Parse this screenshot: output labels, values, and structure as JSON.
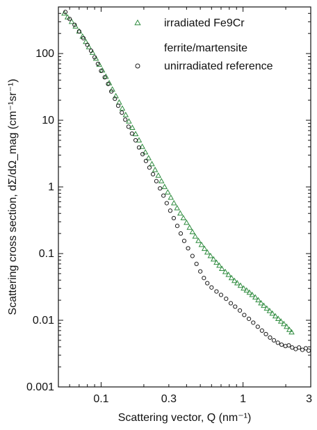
{
  "chart_data": {
    "type": "scatter",
    "title": "",
    "xlabel": "Scattering vector, Q  (nm⁻¹)",
    "ylabel": "Scattering cross section, dΣ/dΩ_mag  (cm⁻¹sr⁻¹)",
    "x_scale": "log",
    "y_scale": "log",
    "xlim": [
      0.05,
      3
    ],
    "ylim": [
      0.001,
      500
    ],
    "x_ticks": [
      0.1,
      0.3,
      1,
      3
    ],
    "x_tick_labels": [
      "0.1",
      "0.3",
      "1",
      "3"
    ],
    "y_ticks": [
      0.001,
      0.01,
      0.1,
      1,
      10,
      100
    ],
    "y_tick_labels": [
      "0.001",
      "0.01",
      "0.1",
      "1",
      "10",
      "100"
    ],
    "grid": false,
    "legend_position": "top-right",
    "legend_lines": [
      "irradiated Fe9Cr",
      "ferrite/martensite",
      "unirradiated reference"
    ],
    "series": [
      {
        "name": "irradiated Fe9Cr ferrite/martensite",
        "marker": "triangle",
        "color": "#2e8b3e",
        "points": [
          [
            0.055,
            400
          ],
          [
            0.058,
            350
          ],
          [
            0.062,
            300
          ],
          [
            0.066,
            255
          ],
          [
            0.07,
            215
          ],
          [
            0.074,
            180
          ],
          [
            0.078,
            150
          ],
          [
            0.082,
            125
          ],
          [
            0.087,
            103
          ],
          [
            0.092,
            84
          ],
          [
            0.097,
            68
          ],
          [
            0.102,
            56
          ],
          [
            0.108,
            45
          ],
          [
            0.114,
            36
          ],
          [
            0.12,
            29
          ],
          [
            0.127,
            23
          ],
          [
            0.134,
            18.5
          ],
          [
            0.141,
            15
          ],
          [
            0.149,
            12
          ],
          [
            0.157,
            9.6
          ],
          [
            0.166,
            7.7
          ],
          [
            0.175,
            6.2
          ],
          [
            0.185,
            5
          ],
          [
            0.195,
            4
          ],
          [
            0.205,
            3.3
          ],
          [
            0.216,
            2.7
          ],
          [
            0.228,
            2.2
          ],
          [
            0.24,
            1.8
          ],
          [
            0.253,
            1.48
          ],
          [
            0.266,
            1.22
          ],
          [
            0.28,
            1
          ],
          [
            0.295,
            0.83
          ],
          [
            0.31,
            0.69
          ],
          [
            0.326,
            0.57
          ],
          [
            0.343,
            0.48
          ],
          [
            0.361,
            0.4
          ],
          [
            0.38,
            0.34
          ],
          [
            0.4,
            0.29
          ],
          [
            0.42,
            0.245
          ],
          [
            0.44,
            0.21
          ],
          [
            0.46,
            0.18
          ],
          [
            0.485,
            0.155
          ],
          [
            0.51,
            0.135
          ],
          [
            0.535,
            0.118
          ],
          [
            0.56,
            0.104
          ],
          [
            0.59,
            0.092
          ],
          [
            0.62,
            0.082
          ],
          [
            0.65,
            0.073
          ],
          [
            0.68,
            0.066
          ],
          [
            0.71,
            0.059
          ],
          [
            0.75,
            0.053
          ],
          [
            0.79,
            0.048
          ],
          [
            0.83,
            0.043
          ],
          [
            0.87,
            0.039
          ],
          [
            0.91,
            0.036
          ],
          [
            0.96,
            0.033
          ],
          [
            1.01,
            0.03
          ],
          [
            1.06,
            0.028
          ],
          [
            1.11,
            0.026
          ],
          [
            1.16,
            0.024
          ],
          [
            1.22,
            0.022
          ],
          [
            1.28,
            0.02
          ],
          [
            1.34,
            0.018
          ],
          [
            1.4,
            0.0165
          ],
          [
            1.47,
            0.015
          ],
          [
            1.54,
            0.0138
          ],
          [
            1.61,
            0.0126
          ],
          [
            1.69,
            0.0115
          ],
          [
            1.77,
            0.0105
          ],
          [
            1.85,
            0.0096
          ],
          [
            1.94,
            0.0088
          ],
          [
            2.03,
            0.008
          ],
          [
            2.12,
            0.0072
          ],
          [
            2.2,
            0.0066
          ]
        ]
      },
      {
        "name": "unirradiated reference",
        "marker": "circle",
        "color": "#1a1a1a",
        "points": [
          [
            0.056,
            420
          ],
          [
            0.06,
            330
          ],
          [
            0.065,
            270
          ],
          [
            0.07,
            215
          ],
          [
            0.075,
            170
          ],
          [
            0.08,
            135
          ],
          [
            0.085,
            110
          ],
          [
            0.09,
            88
          ],
          [
            0.095,
            70
          ],
          [
            0.1,
            55
          ],
          [
            0.106,
            44
          ],
          [
            0.112,
            35
          ],
          [
            0.118,
            27
          ],
          [
            0.125,
            21
          ],
          [
            0.132,
            16.5
          ],
          [
            0.14,
            13
          ],
          [
            0.148,
            10.2
          ],
          [
            0.156,
            8
          ],
          [
            0.165,
            6.3
          ],
          [
            0.175,
            5
          ],
          [
            0.185,
            3.9
          ],
          [
            0.196,
            3.1
          ],
          [
            0.207,
            2.45
          ],
          [
            0.219,
            1.95
          ],
          [
            0.232,
            1.55
          ],
          [
            0.245,
            1.22
          ],
          [
            0.26,
            0.95
          ],
          [
            0.275,
            0.74
          ],
          [
            0.29,
            0.57
          ],
          [
            0.307,
            0.44
          ],
          [
            0.325,
            0.34
          ],
          [
            0.344,
            0.26
          ],
          [
            0.364,
            0.2
          ],
          [
            0.385,
            0.155
          ],
          [
            0.41,
            0.12
          ],
          [
            0.44,
            0.092
          ],
          [
            0.47,
            0.07
          ],
          [
            0.5,
            0.054
          ],
          [
            0.53,
            0.043
          ],
          [
            0.56,
            0.036
          ],
          [
            0.6,
            0.031
          ],
          [
            0.65,
            0.027
          ],
          [
            0.7,
            0.024
          ],
          [
            0.76,
            0.021
          ],
          [
            0.82,
            0.018
          ],
          [
            0.88,
            0.016
          ],
          [
            0.95,
            0.014
          ],
          [
            1.02,
            0.012
          ],
          [
            1.1,
            0.0105
          ],
          [
            1.18,
            0.0092
          ],
          [
            1.27,
            0.008
          ],
          [
            1.36,
            0.007
          ],
          [
            1.45,
            0.0062
          ],
          [
            1.55,
            0.0055
          ],
          [
            1.65,
            0.005
          ],
          [
            1.76,
            0.0046
          ],
          [
            1.87,
            0.0043
          ],
          [
            1.99,
            0.0041
          ],
          [
            2.1,
            0.0042
          ],
          [
            2.22,
            0.0039
          ],
          [
            2.35,
            0.0037
          ],
          [
            2.48,
            0.0039
          ],
          [
            2.62,
            0.0036
          ],
          [
            2.77,
            0.0038
          ],
          [
            2.9,
            0.0035
          ]
        ]
      }
    ]
  }
}
